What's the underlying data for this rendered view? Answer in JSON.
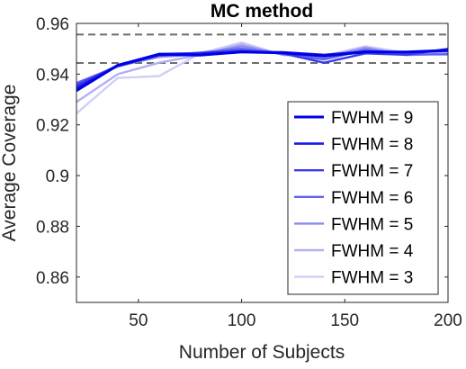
{
  "chart_data": {
    "type": "line",
    "title": "MC method",
    "xlabel": "Number of Subjects",
    "ylabel": "Average Coverage",
    "xlim": [
      20,
      200
    ],
    "ylim": [
      0.85,
      0.96
    ],
    "xticks": [
      50,
      100,
      150,
      200
    ],
    "yticks": [
      0.86,
      0.88,
      0.9,
      0.92,
      0.94,
      0.96
    ],
    "ytick_labels": [
      "0.86",
      "0.88",
      "0.9",
      "0.92",
      "0.94",
      "0.96"
    ],
    "reference_lines": [
      0.9444,
      0.9556
    ],
    "legend_position": "bottom-right",
    "x": [
      20,
      40,
      60,
      80,
      100,
      120,
      140,
      160,
      180,
      200
    ],
    "series": [
      {
        "name": "FWHM = 9",
        "color": "#0000e6",
        "width": 3,
        "values": [
          0.9335,
          0.9435,
          0.9478,
          0.9475,
          0.9487,
          0.9484,
          0.9472,
          0.9487,
          0.9487,
          0.9494
        ]
      },
      {
        "name": "FWHM = 8",
        "color": "#1a1ae8",
        "width": 2.6,
        "values": [
          0.9345,
          0.9433,
          0.9476,
          0.948,
          0.9488,
          0.9486,
          0.9476,
          0.9489,
          0.9486,
          0.9492
        ]
      },
      {
        "name": "FWHM = 7",
        "color": "#3a3aea",
        "width": 2.4,
        "values": [
          0.9355,
          0.9435,
          0.948,
          0.9483,
          0.9492,
          0.9482,
          0.9445,
          0.9482,
          0.9476,
          0.95
        ]
      },
      {
        "name": "FWHM = 6",
        "color": "#6262ec",
        "width": 2.4,
        "values": [
          0.9365,
          0.943,
          0.9472,
          0.9485,
          0.95,
          0.948,
          0.9458,
          0.9495,
          0.9478,
          0.9478
        ]
      },
      {
        "name": "FWHM = 5",
        "color": "#8a8af0",
        "width": 2.4,
        "values": [
          0.9362,
          0.9432,
          0.9468,
          0.9478,
          0.951,
          0.9478,
          0.9465,
          0.9502,
          0.9475,
          0.948
        ]
      },
      {
        "name": "FWHM = 4",
        "color": "#b0b0f4",
        "width": 2.4,
        "values": [
          0.929,
          0.94,
          0.9445,
          0.9476,
          0.9518,
          0.9476,
          0.9468,
          0.9506,
          0.9478,
          0.9482
        ]
      },
      {
        "name": "FWHM = 3",
        "color": "#cfcff8",
        "width": 2.4,
        "values": [
          0.9245,
          0.9385,
          0.9392,
          0.9482,
          0.9525,
          0.9475,
          0.9472,
          0.951,
          0.9484,
          0.9484
        ]
      }
    ]
  }
}
